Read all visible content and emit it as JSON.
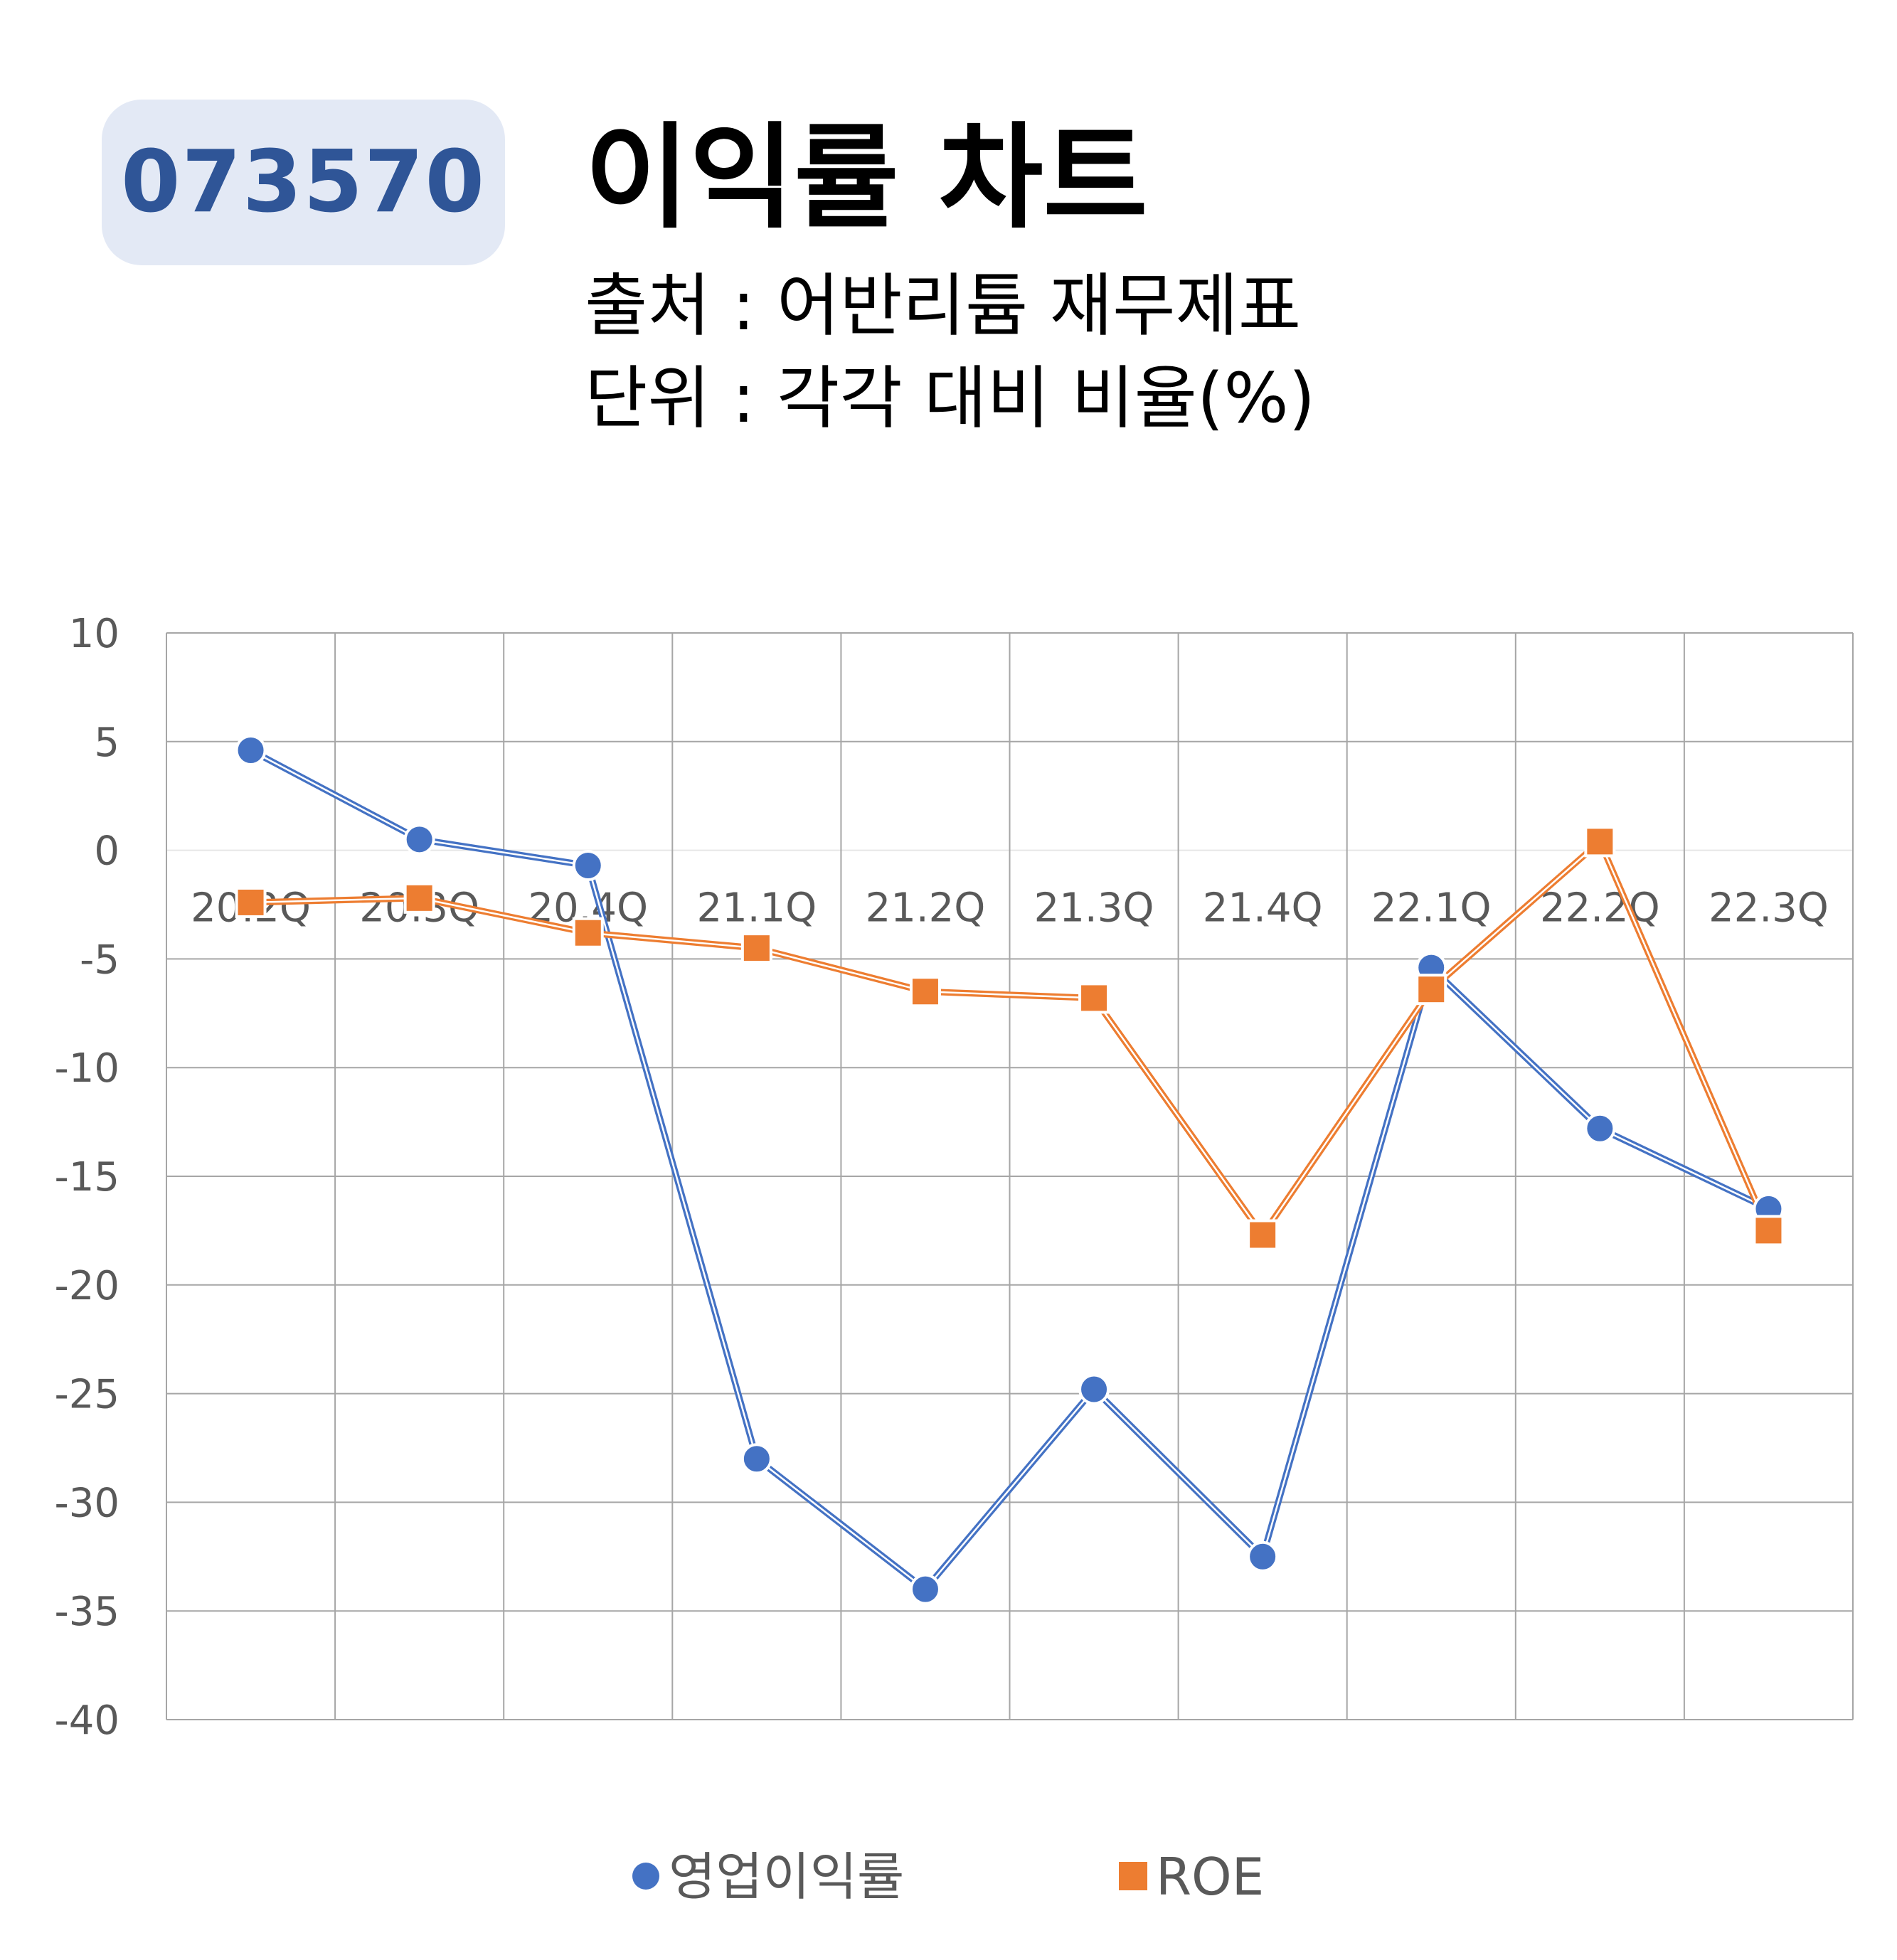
{
  "header": {
    "code": "073570",
    "title": "이익률 차트",
    "source": "출처 : 어반리튬 재무제표",
    "unit": "단위 : 각각 대비 비율(%)"
  },
  "colors": {
    "series1": "#4472c4",
    "series2": "#ed7d31",
    "grid": "#a6a6a6",
    "badge_bg": "#e3e9f5",
    "badge_text": "#2f5597"
  },
  "chart_data": {
    "type": "line",
    "categories": [
      "20.2Q",
      "20.3Q",
      "20.4Q",
      "21.1Q",
      "21.2Q",
      "21.3Q",
      "21.4Q",
      "22.1Q",
      "22.2Q",
      "22.3Q"
    ],
    "series": [
      {
        "name": "영업이익률",
        "marker": "circle",
        "values": [
          4.6,
          0.5,
          -0.7,
          -28.0,
          -34.0,
          -24.8,
          -32.5,
          -5.4,
          -12.8,
          -16.5
        ]
      },
      {
        "name": "ROE",
        "marker": "square",
        "values": [
          -2.4,
          -2.2,
          -3.8,
          -4.5,
          -6.5,
          -6.8,
          -17.7,
          -6.4,
          0.4,
          -17.5
        ]
      }
    ],
    "yticks": [
      "10",
      "5",
      "0",
      "-5",
      "-10",
      "-15",
      "-20",
      "-25",
      "-30",
      "-35",
      "-40"
    ],
    "ylim": [
      -40,
      10
    ],
    "grid": true,
    "legend": "bottom"
  }
}
